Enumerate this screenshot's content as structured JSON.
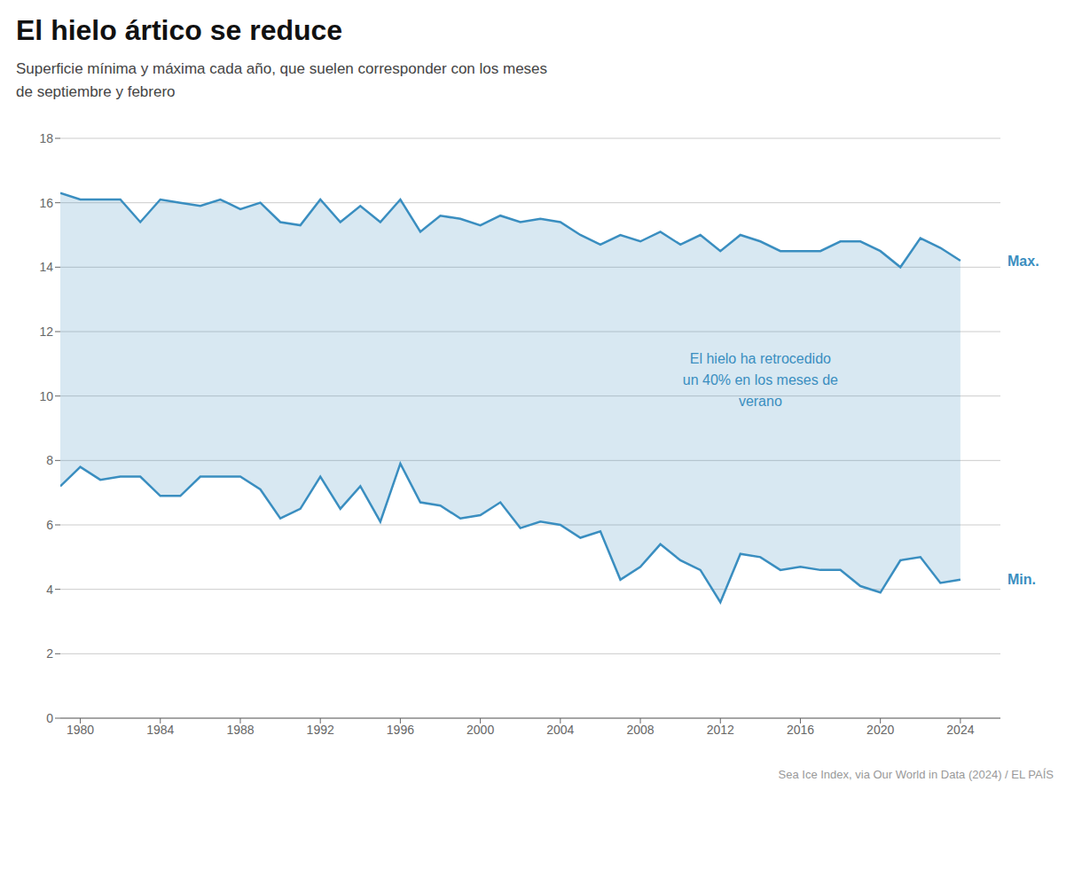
{
  "chart_data": {
    "type": "area",
    "title": "El hielo ártico se reduce",
    "subtitle": "Superficie mínima y máxima cada año, que suelen corresponder con los meses\nde septiembre y febrero",
    "source": "Sea Ice Index, via Our World in Data (2024) / EL PAÍS",
    "annotations": [
      {
        "text": "El hielo ha retrocedido\nun 40% en los meses de\nverano",
        "x": 2014,
        "y": 10.5
      }
    ],
    "x": [
      1979,
      1980,
      1981,
      1982,
      1983,
      1984,
      1985,
      1986,
      1987,
      1988,
      1989,
      1990,
      1991,
      1992,
      1993,
      1994,
      1995,
      1996,
      1997,
      1998,
      1999,
      2000,
      2001,
      2002,
      2003,
      2004,
      2005,
      2006,
      2007,
      2008,
      2009,
      2010,
      2011,
      2012,
      2013,
      2014,
      2015,
      2016,
      2017,
      2018,
      2019,
      2020,
      2021,
      2022,
      2023,
      2024
    ],
    "series": [
      {
        "name": "Max.",
        "color": "#3a8ec0",
        "values": [
          16.3,
          16.1,
          16.1,
          16.1,
          15.4,
          16.1,
          16.0,
          15.9,
          16.1,
          15.8,
          16.0,
          15.4,
          15.3,
          16.1,
          15.4,
          15.9,
          15.4,
          16.1,
          15.1,
          15.6,
          15.5,
          15.3,
          15.6,
          15.4,
          15.5,
          15.4,
          15.0,
          14.7,
          15.0,
          14.8,
          15.1,
          14.7,
          15.0,
          14.5,
          15.0,
          14.8,
          14.5,
          14.5,
          14.5,
          14.8,
          14.8,
          14.5,
          14.0,
          14.9,
          14.6,
          14.2
        ]
      },
      {
        "name": "Min.",
        "color": "#3a8ec0",
        "values": [
          7.2,
          7.8,
          7.4,
          7.5,
          7.5,
          6.9,
          6.9,
          7.5,
          7.5,
          7.5,
          7.1,
          6.2,
          6.5,
          7.5,
          6.5,
          7.2,
          6.1,
          7.9,
          6.7,
          6.6,
          6.2,
          6.3,
          6.7,
          5.9,
          6.1,
          6.0,
          5.6,
          5.8,
          4.3,
          4.7,
          5.4,
          4.9,
          4.6,
          3.6,
          5.1,
          5.0,
          4.6,
          4.7,
          4.6,
          4.6,
          4.1,
          3.9,
          4.9,
          5.0,
          4.2,
          4.3
        ]
      }
    ],
    "xlim": [
      1979,
      2026
    ],
    "xticks": [
      1980,
      1984,
      1988,
      1992,
      1996,
      2000,
      2004,
      2008,
      2012,
      2016,
      2020,
      2024
    ],
    "ylim": [
      0,
      18
    ],
    "yticks": [
      0,
      2,
      4,
      6,
      8,
      10,
      12,
      14,
      16,
      18
    ],
    "grid": true
  }
}
